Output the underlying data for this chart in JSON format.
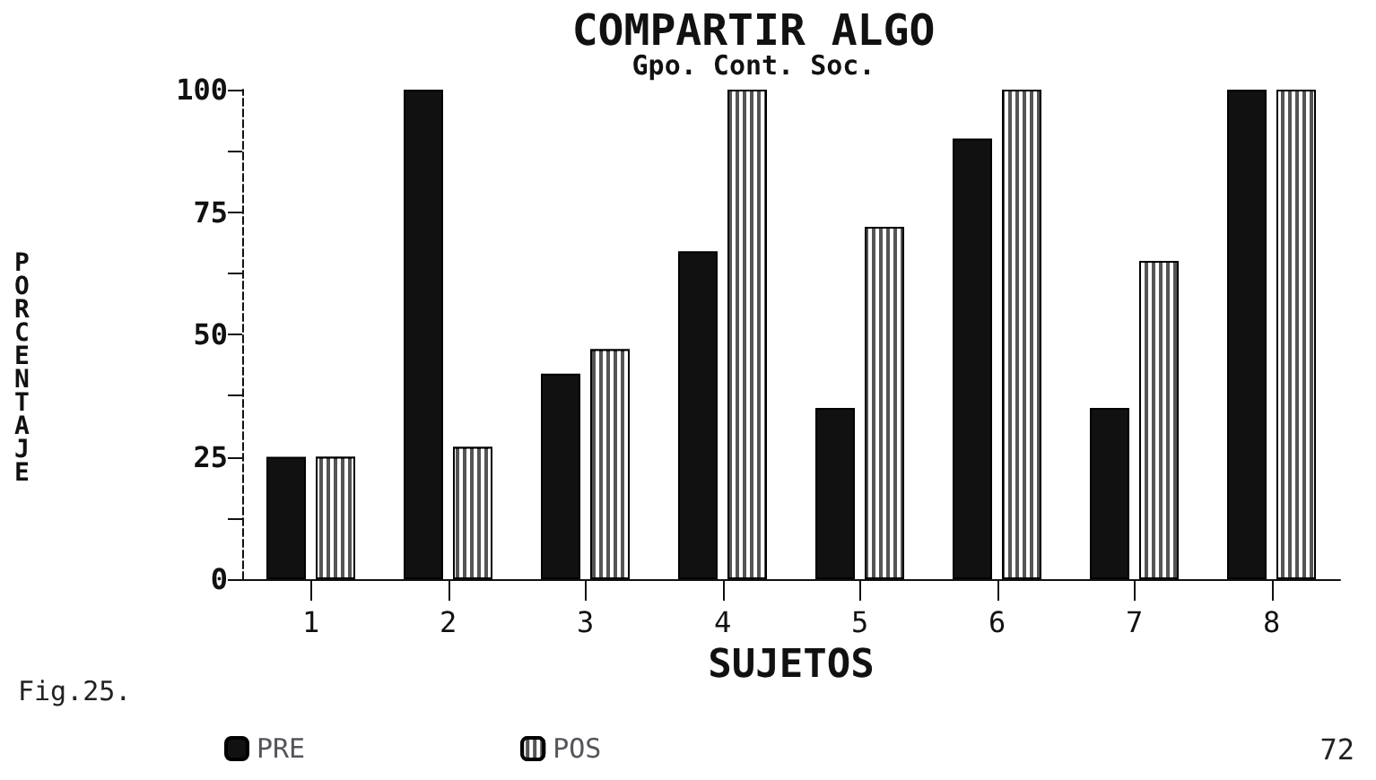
{
  "chart_data": {
    "type": "bar",
    "title": "COMPARTIR ALGO",
    "subtitle": "Gpo. Cont. Soc.",
    "xlabel": "SUJETOS",
    "ylabel": "PORCENTAJE",
    "categories": [
      "1",
      "2",
      "3",
      "4",
      "5",
      "6",
      "7",
      "8"
    ],
    "series": [
      {
        "name": "PRE",
        "color": "#111111",
        "values": [
          25,
          100,
          42,
          67,
          35,
          90,
          35,
          100
        ]
      },
      {
        "name": "POS",
        "color": "#555555",
        "values": [
          25,
          27,
          47,
          100,
          72,
          100,
          65,
          100
        ]
      }
    ],
    "ylim": [
      0,
      100
    ],
    "yticks": [
      0,
      {
        "value": 12.5,
        "label": null
      },
      25,
      {
        "value": 37.5,
        "label": null
      },
      50,
      {
        "value": 62.5,
        "label": null
      },
      75,
      {
        "value": 87.5,
        "label": null
      },
      100
    ],
    "grid": false,
    "legend": "bottom left",
    "annotations": [
      "Fig.25.",
      "72"
    ]
  }
}
